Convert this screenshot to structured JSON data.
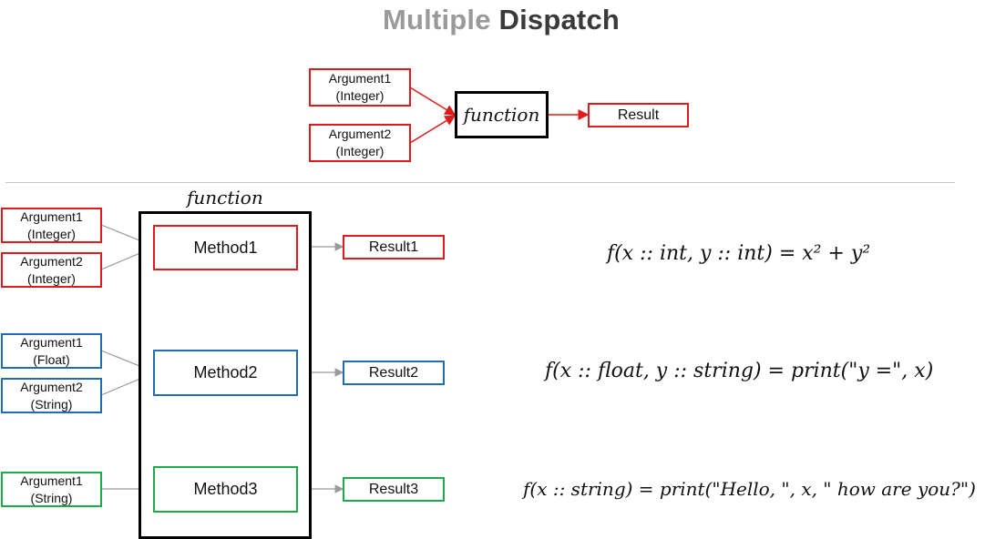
{
  "title": {
    "part1": "Multiple",
    "part2": "Dispatch"
  },
  "top": {
    "arg1": {
      "line1": "Argument1",
      "line2": "(Integer)"
    },
    "arg2": {
      "line1": "Argument2",
      "line2": "(Integer)"
    },
    "function_label": "function",
    "result_label": "Result"
  },
  "bottom": {
    "function_label": "function",
    "groups": [
      {
        "args": [
          {
            "line1": "Argument1",
            "line2": "(Integer)"
          },
          {
            "line1": "Argument2",
            "line2": "(Integer)"
          }
        ],
        "method": "Method1",
        "result": "Result1",
        "formula": "f(x :: int, y :: int) = x² + y²",
        "color": "#e01b1b"
      },
      {
        "args": [
          {
            "line1": "Argument1",
            "line2": "(Float)"
          },
          {
            "line1": "Argument2",
            "line2": "(String)"
          }
        ],
        "method": "Method2",
        "result": "Result2",
        "formula": "f(x :: float, y :: string) = print(\"y =\", x)",
        "color": "#1f6db5"
      },
      {
        "args": [
          {
            "line1": "Argument1",
            "line2": "(String)"
          }
        ],
        "method": "Method3",
        "result": "Result3",
        "formula": "f(x :: string) = print(\"Hello, \", x, \" how are you?\")",
        "color": "#1faa4a"
      }
    ]
  },
  "colors": {
    "red": "#e01b1b",
    "blue": "#1f6db5",
    "green": "#1faa4a",
    "connector": "#9a9a9a"
  }
}
